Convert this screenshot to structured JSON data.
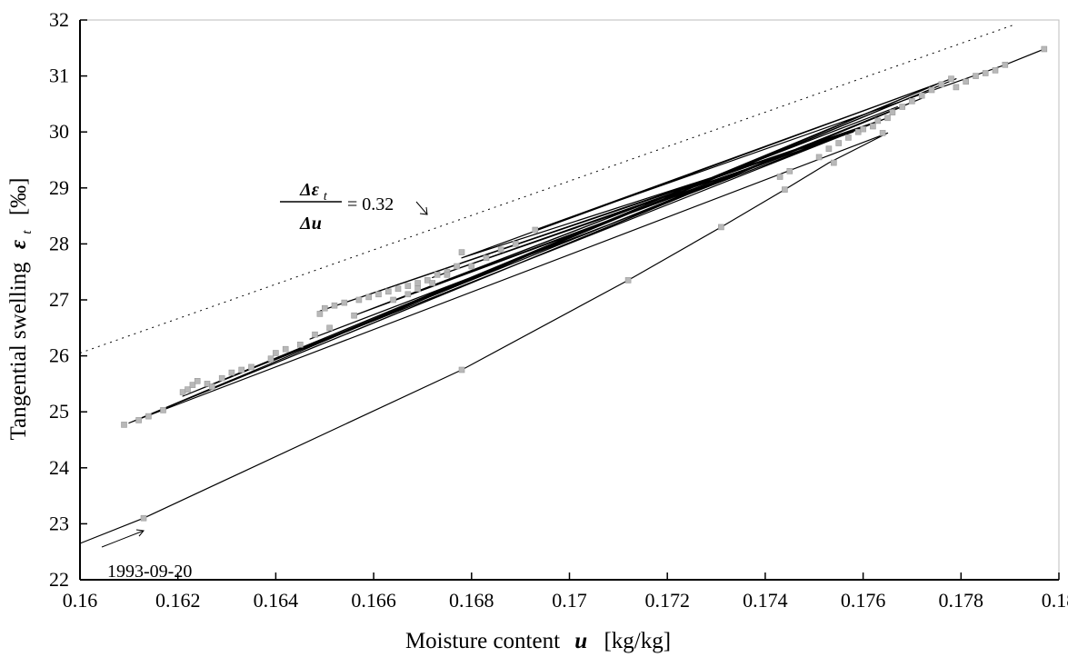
{
  "chart_data": {
    "type": "line",
    "title": "",
    "xlabel": "Moisture content",
    "xlabel_symbol": "u",
    "xlabel_unit": "[kg/kg]",
    "ylabel": "Tangential swelling",
    "ylabel_symbol": "ε",
    "ylabel_subscript": "t",
    "ylabel_unit": "[‰]",
    "xlim": [
      0.16,
      0.18
    ],
    "ylim": [
      22,
      32
    ],
    "x_ticks": [
      0.16,
      0.162,
      0.164,
      0.166,
      0.168,
      0.17,
      0.172,
      0.174,
      0.176,
      0.178,
      0.18
    ],
    "x_tick_labels": [
      "0.16",
      "0.162",
      "0.164",
      "0.166",
      "0.168",
      "0.17",
      "0.172",
      "0.174",
      "0.176",
      "0.178",
      "0.18"
    ],
    "y_ticks": [
      22,
      23,
      24,
      25,
      26,
      27,
      28,
      29,
      30,
      31,
      32
    ],
    "y_tick_labels": [
      "22",
      "23",
      "24",
      "25",
      "26",
      "27",
      "28",
      "29",
      "30",
      "31",
      "32"
    ],
    "grid": false,
    "reference_line": {
      "style": "dotted",
      "slope_label_numerator": "Δε",
      "slope_label_numerator_sub": "t",
      "slope_label_denominator": "Δu",
      "slope_value": "= 0.32",
      "points": [
        [
          0.16,
          26.05
        ],
        [
          0.1791,
          31.92
        ]
      ]
    },
    "date_annotation": "1993-09-20",
    "series": [
      {
        "style": "solid-with-markers",
        "points": [
          [
            0.16,
            22.65
          ],
          [
            0.1613,
            23.1
          ],
          [
            0.1678,
            25.75
          ],
          [
            0.1712,
            27.35
          ],
          [
            0.1731,
            28.3
          ],
          [
            0.1744,
            28.97
          ],
          [
            0.1753,
            29.45
          ],
          [
            0.1765,
            29.98
          ],
          [
            0.161,
            24.8
          ],
          [
            0.1775,
            30.85
          ],
          [
            0.1626,
            25.45
          ],
          [
            0.1772,
            30.6
          ],
          [
            0.1617,
            25.05
          ],
          [
            0.1768,
            30.45
          ],
          [
            0.1621,
            25.28
          ],
          [
            0.1779,
            30.95
          ],
          [
            0.1639,
            25.9
          ],
          [
            0.1762,
            30.15
          ],
          [
            0.1647,
            26.3
          ],
          [
            0.1759,
            30.05
          ],
          [
            0.1649,
            26.8
          ],
          [
            0.1765,
            30.25
          ],
          [
            0.1656,
            26.72
          ],
          [
            0.1767,
            30.45
          ],
          [
            0.1666,
            27.05
          ],
          [
            0.1754,
            29.92
          ],
          [
            0.1672,
            27.4
          ],
          [
            0.1758,
            30.0
          ],
          [
            0.1678,
            27.75
          ],
          [
            0.1778,
            30.95
          ],
          [
            0.1693,
            28.25
          ],
          [
            0.1789,
            31.2
          ],
          [
            0.1797,
            31.48
          ]
        ]
      }
    ],
    "scatter_points": [
      [
        0.1609,
        24.77
      ],
      [
        0.1612,
        24.85
      ],
      [
        0.1614,
        24.92
      ],
      [
        0.1617,
        25.03
      ],
      [
        0.1621,
        25.35
      ],
      [
        0.1622,
        25.4
      ],
      [
        0.1623,
        25.48
      ],
      [
        0.1624,
        25.55
      ],
      [
        0.1626,
        25.5
      ],
      [
        0.1627,
        25.45
      ],
      [
        0.1629,
        25.6
      ],
      [
        0.1631,
        25.7
      ],
      [
        0.1633,
        25.75
      ],
      [
        0.1635,
        25.8
      ],
      [
        0.1639,
        25.95
      ],
      [
        0.164,
        26.05
      ],
      [
        0.1642,
        26.12
      ],
      [
        0.1645,
        26.2
      ],
      [
        0.1648,
        26.38
      ],
      [
        0.1651,
        26.5
      ],
      [
        0.1649,
        26.75
      ],
      [
        0.165,
        26.85
      ],
      [
        0.1652,
        26.9
      ],
      [
        0.1654,
        26.95
      ],
      [
        0.1657,
        27.0
      ],
      [
        0.1659,
        27.05
      ],
      [
        0.1661,
        27.1
      ],
      [
        0.1663,
        27.15
      ],
      [
        0.1665,
        27.2
      ],
      [
        0.1667,
        27.25
      ],
      [
        0.1669,
        27.3
      ],
      [
        0.1671,
        27.35
      ],
      [
        0.1673,
        27.45
      ],
      [
        0.1675,
        27.5
      ],
      [
        0.1677,
        27.6
      ],
      [
        0.1678,
        27.85
      ],
      [
        0.1664,
        27.0
      ],
      [
        0.1667,
        27.1
      ],
      [
        0.1669,
        27.2
      ],
      [
        0.1672,
        27.3
      ],
      [
        0.1675,
        27.45
      ],
      [
        0.168,
        27.6
      ],
      [
        0.1683,
        27.75
      ],
      [
        0.1686,
        27.9
      ],
      [
        0.1689,
        28.0
      ],
      [
        0.1693,
        28.25
      ],
      [
        0.1656,
        26.72
      ],
      [
        0.1743,
        29.2
      ],
      [
        0.1745,
        29.3
      ],
      [
        0.1751,
        29.55
      ],
      [
        0.1753,
        29.7
      ],
      [
        0.1755,
        29.8
      ],
      [
        0.1757,
        29.9
      ],
      [
        0.1759,
        30.0
      ],
      [
        0.176,
        30.05
      ],
      [
        0.1762,
        30.1
      ],
      [
        0.1763,
        30.2
      ],
      [
        0.1765,
        30.25
      ],
      [
        0.1766,
        30.35
      ],
      [
        0.1768,
        30.45
      ],
      [
        0.177,
        30.55
      ],
      [
        0.1772,
        30.65
      ],
      [
        0.1774,
        30.75
      ],
      [
        0.1776,
        30.85
      ],
      [
        0.1778,
        30.95
      ],
      [
        0.1779,
        30.8
      ],
      [
        0.1781,
        30.9
      ],
      [
        0.1783,
        31.0
      ],
      [
        0.1785,
        31.05
      ],
      [
        0.1787,
        31.1
      ],
      [
        0.1789,
        31.2
      ],
      [
        0.1797,
        31.48
      ],
      [
        0.1764,
        29.98
      ],
      [
        0.1754,
        29.45
      ],
      [
        0.1744,
        28.97
      ],
      [
        0.1731,
        28.3
      ],
      [
        0.1712,
        27.35
      ],
      [
        0.1678,
        25.75
      ],
      [
        0.1613,
        23.1
      ]
    ]
  }
}
